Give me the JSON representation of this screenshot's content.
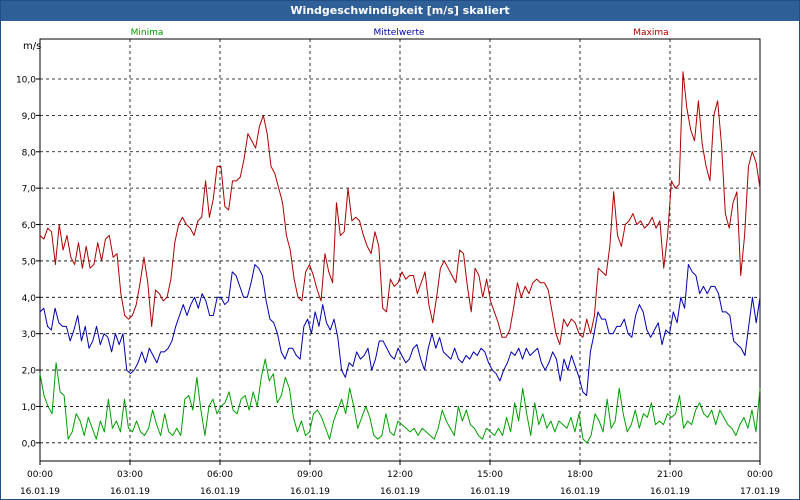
{
  "window": {
    "title": "Windgeschwindigkeit [m/s] skaliert"
  },
  "chart_data": {
    "type": "line",
    "title": "Windgeschwindigkeit [m/s] skaliert",
    "ylabel": "m/s",
    "ylim": [
      -0.5,
      11.1
    ],
    "yticks": [
      "0,0",
      "1,0",
      "2,0",
      "3,0",
      "4,0",
      "5,0",
      "6,0",
      "7,0",
      "8,0",
      "9,0",
      "10,0"
    ],
    "ytick_values": [
      0,
      1,
      2,
      3,
      4,
      5,
      6,
      7,
      8,
      9,
      10
    ],
    "xticks": [
      {
        "time": "00:00",
        "date": "16.01.19"
      },
      {
        "time": "03:00",
        "date": "16.01.19"
      },
      {
        "time": "06:00",
        "date": "16.01.19"
      },
      {
        "time": "09:00",
        "date": "16.01.19"
      },
      {
        "time": "12:00",
        "date": "16.01.19"
      },
      {
        "time": "15:00",
        "date": "16.01.19"
      },
      {
        "time": "18:00",
        "date": "16.01.19"
      },
      {
        "time": "21:00",
        "date": "16.01.19"
      },
      {
        "time": "00:00",
        "date": "17.01.19"
      }
    ],
    "grid": true,
    "series": [
      {
        "name": "Minima",
        "color": "#00a000",
        "values": [
          1.9,
          1.3,
          1.0,
          0.8,
          2.2,
          1.4,
          1.3,
          0.1,
          0.3,
          0.8,
          0.6,
          0.2,
          0.7,
          0.4,
          0.1,
          0.6,
          0.3,
          1.2,
          0.4,
          0.6,
          0.3,
          1.2,
          0.4,
          0.3,
          0.6,
          0.3,
          0.2,
          0.4,
          0.9,
          0.5,
          0.2,
          0.8,
          0.3,
          0.2,
          0.4,
          0.2,
          1.2,
          1.3,
          0.9,
          1.8,
          0.9,
          0.2,
          1.0,
          1.2,
          0.8,
          1.0,
          1.1,
          1.4,
          0.9,
          0.8,
          1.2,
          1.3,
          0.9,
          1.4,
          1.0,
          1.8,
          2.3,
          1.7,
          1.9,
          1.1,
          1.3,
          1.8,
          1.5,
          0.7,
          0.3,
          0.6,
          0.2,
          0.3,
          0.8,
          0.9,
          0.7,
          0.4,
          0.1,
          0.6,
          0.9,
          1.2,
          0.8,
          1.5,
          1.0,
          0.4,
          0.7,
          1.0,
          0.7,
          0.2,
          0.1,
          0.2,
          0.8,
          0.3,
          0.2,
          0.6,
          0.5,
          0.4,
          0.3,
          0.4,
          0.2,
          0.4,
          0.3,
          0.2,
          0.1,
          0.4,
          0.9,
          0.6,
          0.4,
          0.2,
          1.0,
          0.6,
          0.9,
          0.5,
          0.4,
          0.2,
          0.1,
          0.4,
          0.3,
          0.2,
          0.4,
          0.2,
          0.7,
          0.3,
          1.1,
          0.6,
          1.5,
          0.8,
          0.2,
          1.1,
          0.5,
          0.8,
          0.4,
          0.6,
          0.3,
          0.6,
          0.5,
          0.4,
          0.7,
          0.3,
          0.8,
          0.1,
          0.0,
          0.2,
          0.8,
          0.6,
          0.3,
          1.2,
          0.4,
          0.6,
          1.5,
          0.8,
          0.3,
          0.5,
          0.9,
          0.4,
          0.8,
          0.7,
          1.1,
          0.5,
          0.6,
          0.5,
          0.8,
          0.7,
          0.8,
          1.3,
          0.4,
          0.6,
          0.5,
          0.9,
          1.1,
          0.8,
          0.7,
          0.9,
          0.5,
          0.9,
          0.7,
          0.5,
          0.4,
          0.2,
          0.5,
          0.7,
          0.4,
          0.9,
          0.3,
          1.5
        ]
      },
      {
        "name": "Mittelwerte",
        "color": "#0000b0",
        "values": [
          3.6,
          3.7,
          3.2,
          3.1,
          3.7,
          3.3,
          3.2,
          3.2,
          2.8,
          3.1,
          3.5,
          2.8,
          3.2,
          2.6,
          2.8,
          3.2,
          2.7,
          3.0,
          2.9,
          2.5,
          3.0,
          2.7,
          3.0,
          2.0,
          1.9,
          2.0,
          2.2,
          2.5,
          2.2,
          2.6,
          2.4,
          2.2,
          2.5,
          2.5,
          2.6,
          2.8,
          3.2,
          3.5,
          3.8,
          3.5,
          3.8,
          4.0,
          3.7,
          4.1,
          3.9,
          3.5,
          3.5,
          4.0,
          4.0,
          3.8,
          3.9,
          4.7,
          4.6,
          4.3,
          4.0,
          4.0,
          4.4,
          4.9,
          4.8,
          4.6,
          3.9,
          3.4,
          3.3,
          3.0,
          2.5,
          2.3,
          2.6,
          2.6,
          2.4,
          2.3,
          3.2,
          3.4,
          3.0,
          3.6,
          3.2,
          3.8,
          3.3,
          3.1,
          3.4,
          2.9,
          2.0,
          1.8,
          2.2,
          2.1,
          2.5,
          2.3,
          2.4,
          2.6,
          2.0,
          2.3,
          2.8,
          2.8,
          2.6,
          2.4,
          2.3,
          2.6,
          2.4,
          2.2,
          2.3,
          2.6,
          2.7,
          2.3,
          2.0,
          2.6,
          3.0,
          2.6,
          2.9,
          2.5,
          2.4,
          2.3,
          2.6,
          2.3,
          2.2,
          2.4,
          2.3,
          2.5,
          2.4,
          2.6,
          2.5,
          2.2,
          2.0,
          1.9,
          1.7,
          2.0,
          2.2,
          2.5,
          2.4,
          2.6,
          2.3,
          2.6,
          2.4,
          2.5,
          2.6,
          2.2,
          2.0,
          2.2,
          2.5,
          2.3,
          1.7,
          2.3,
          2.0,
          2.4,
          2.1,
          1.8,
          1.4,
          1.3,
          2.5,
          3.0,
          3.6,
          3.4,
          3.4,
          3.0,
          3.0,
          3.2,
          3.2,
          3.4,
          3.0,
          2.9,
          3.5,
          3.8,
          3.6,
          3.1,
          2.9,
          3.1,
          3.3,
          2.7,
          3.1,
          3.0,
          3.6,
          3.3,
          4.0,
          3.7,
          4.9,
          4.7,
          4.6,
          4.1,
          4.3,
          4.1,
          4.3,
          4.3,
          4.1,
          3.6,
          3.6,
          3.5,
          2.8,
          2.7,
          2.6,
          2.4,
          3.2,
          4.0,
          3.3,
          4.0
        ]
      },
      {
        "name": "Maxima",
        "color": "#b00000",
        "values": [
          5.7,
          5.6,
          5.9,
          5.8,
          4.9,
          6.0,
          5.3,
          5.7,
          5.1,
          4.9,
          5.5,
          4.8,
          5.4,
          4.8,
          4.9,
          5.5,
          5.0,
          5.6,
          5.7,
          5.1,
          5.2,
          4.1,
          3.5,
          3.4,
          3.5,
          3.8,
          4.4,
          5.1,
          4.4,
          3.2,
          4.2,
          4.1,
          3.9,
          4.0,
          4.5,
          5.5,
          6.0,
          6.2,
          6.0,
          5.9,
          5.7,
          6.1,
          6.2,
          7.2,
          6.2,
          6.7,
          7.6,
          7.6,
          6.5,
          6.4,
          7.2,
          7.2,
          7.3,
          7.8,
          8.5,
          8.3,
          8.1,
          8.7,
          9.0,
          8.5,
          7.6,
          7.4,
          7.0,
          6.6,
          5.7,
          5.3,
          4.5,
          4.0,
          3.9,
          4.7,
          4.9,
          4.6,
          4.2,
          3.9,
          5.2,
          4.7,
          4.4,
          6.6,
          5.7,
          5.8,
          7.0,
          6.1,
          6.2,
          6.1,
          5.7,
          5.4,
          5.2,
          5.8,
          5.4,
          3.7,
          3.6,
          4.5,
          4.3,
          4.4,
          4.7,
          4.5,
          4.6,
          4.6,
          4.1,
          4.4,
          4.7,
          3.8,
          3.3,
          4.0,
          4.8,
          5.0,
          4.8,
          4.6,
          4.4,
          5.3,
          5.2,
          4.3,
          3.6,
          4.8,
          4.6,
          4.0,
          4.5,
          3.9,
          3.6,
          3.3,
          2.9,
          2.9,
          3.1,
          3.7,
          4.4,
          4.0,
          4.3,
          4.1,
          4.4,
          4.5,
          4.4,
          4.4,
          4.2,
          3.6,
          3.0,
          2.7,
          3.4,
          3.2,
          3.4,
          3.3,
          3.0,
          2.9,
          3.4,
          3.0,
          3.5,
          4.8,
          4.7,
          4.6,
          5.4,
          6.9,
          5.7,
          5.4,
          6.0,
          6.1,
          6.3,
          6.0,
          6.1,
          5.9,
          6.0,
          6.2,
          5.9,
          6.1,
          4.8,
          5.7,
          7.2,
          7.0,
          7.1,
          10.2,
          9.2,
          8.6,
          8.3,
          9.4,
          8.2,
          7.6,
          7.2,
          9.0,
          9.4,
          8.2,
          6.3,
          5.9,
          6.6,
          6.9,
          4.6,
          5.7,
          7.6,
          8.0,
          7.7,
          7.0
        ]
      }
    ]
  }
}
